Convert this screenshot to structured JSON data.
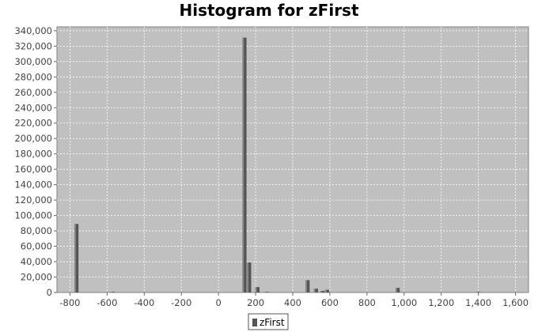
{
  "chart_data": {
    "type": "bar",
    "title": "Histogram for zFirst",
    "xlabel": "",
    "ylabel": "",
    "xlim": [
      -870,
      1670
    ],
    "ylim": [
      0,
      345000
    ],
    "x_ticks": [
      -800,
      -600,
      -400,
      -200,
      0,
      200,
      400,
      600,
      800,
      1000,
      1200,
      1400,
      1600
    ],
    "x_tick_labels": [
      "-800",
      "-600",
      "-400",
      "-200",
      "0",
      "200",
      "400",
      "600",
      "800",
      "1,000",
      "1,200",
      "1,400",
      "1,600"
    ],
    "y_ticks": [
      0,
      20000,
      40000,
      60000,
      80000,
      100000,
      120000,
      140000,
      160000,
      180000,
      200000,
      220000,
      240000,
      260000,
      280000,
      300000,
      320000,
      340000
    ],
    "y_tick_labels": [
      "0",
      "20,000",
      "40,000",
      "60,000",
      "80,000",
      "100,000",
      "120,000",
      "140,000",
      "160,000",
      "180,000",
      "200,000",
      "220,000",
      "240,000",
      "260,000",
      "280,000",
      "300,000",
      "320,000",
      "340,000"
    ],
    "bin_width": 22,
    "grid": true,
    "legend_position": "bottom-center",
    "series": [
      {
        "name": "zFirst",
        "color": "#555555",
        "x": [
          -765,
          -570,
          140,
          165,
          210,
          260,
          480,
          525,
          560,
          585,
          965,
          1400
        ],
        "values": [
          89000,
          1000,
          331000,
          39000,
          7000,
          500,
          16000,
          5000,
          2000,
          3500,
          6000,
          500
        ]
      }
    ]
  }
}
